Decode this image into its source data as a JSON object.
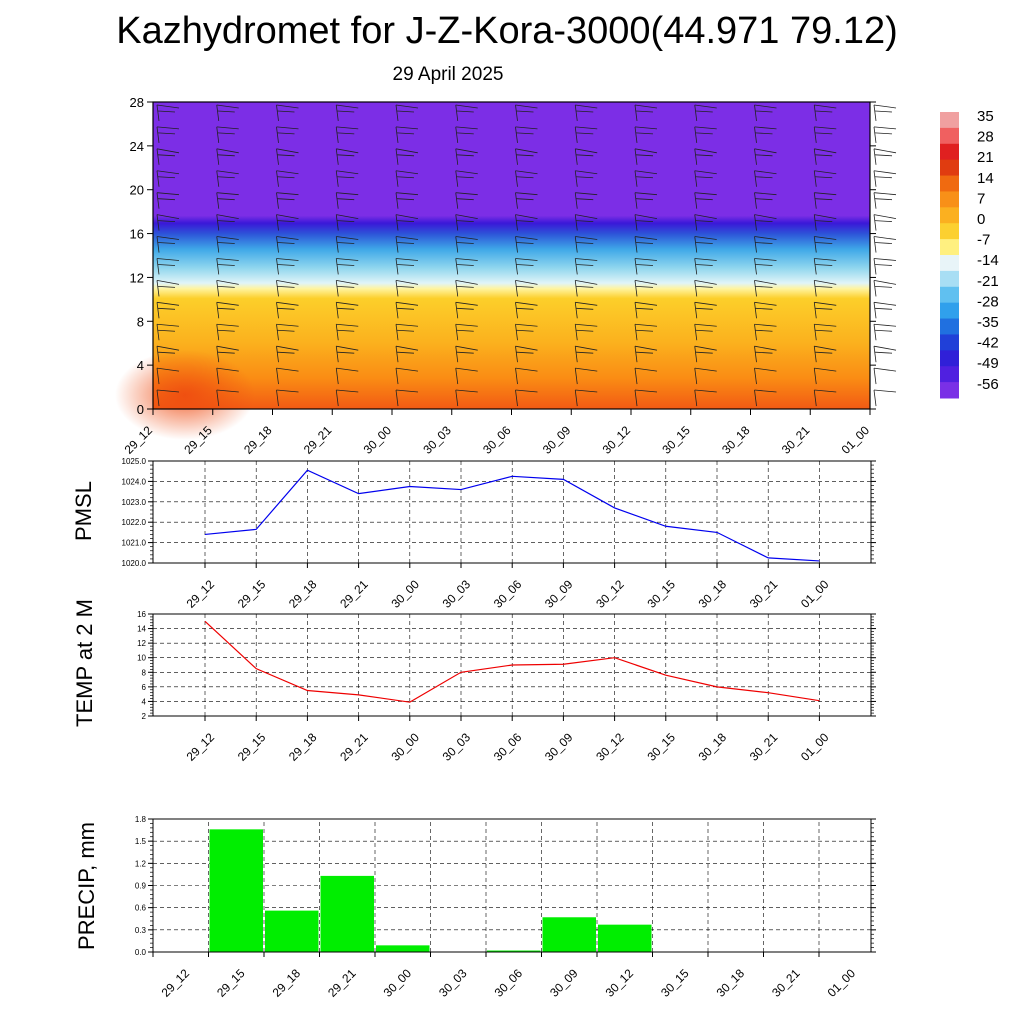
{
  "header": {
    "title": "Kazhydromet for J-Z-Kora-3000(44.971 79.12)",
    "date": "29 April 2025"
  },
  "colorbar": {
    "labels": [
      "35",
      "28",
      "21",
      "14",
      "7",
      "0",
      "-7",
      "-14",
      "-21",
      "-28",
      "-35",
      "-42",
      "-49",
      "-56"
    ]
  },
  "chart_data": [
    {
      "type": "heatmap",
      "title": "",
      "xlabel": "",
      "ylabel": "",
      "x": [
        "29_12",
        "29_15",
        "29_18",
        "29_21",
        "30_00",
        "30_03",
        "30_06",
        "30_09",
        "30_12",
        "30_15",
        "30_18",
        "30_21",
        "01_00"
      ],
      "yticks": [
        0,
        4,
        8,
        12,
        16,
        20,
        24,
        28
      ],
      "ylim": [
        0,
        28
      ],
      "colorbar_range": [
        -56,
        35
      ],
      "legend": "right",
      "note_overlay": "wind barbs"
    },
    {
      "type": "line",
      "ylabel": "PMSL",
      "x": [
        "29_12",
        "29_15",
        "29_18",
        "29_21",
        "30_00",
        "30_03",
        "30_06",
        "30_09",
        "30_12",
        "30_15",
        "30_18",
        "30_21",
        "01_00"
      ],
      "ylim": [
        1020.0,
        1025.0
      ],
      "yticks": [
        "1020.0",
        "1021.0",
        "1022.0",
        "1023.0",
        "1024.0",
        "1025.0"
      ],
      "grid": true,
      "color": "#0000ee",
      "series": [
        {
          "values": [
            1021.4,
            1021.65,
            1024.55,
            1023.4,
            1023.75,
            1023.6,
            1024.25,
            1024.1,
            1022.7,
            1021.8,
            1021.5,
            1020.25,
            1020.1
          ]
        }
      ]
    },
    {
      "type": "line",
      "ylabel": "TEMP at 2 M",
      "x": [
        "29_12",
        "29_15",
        "29_18",
        "29_21",
        "30_00",
        "30_03",
        "30_06",
        "30_09",
        "30_12",
        "30_15",
        "30_18",
        "30_21",
        "01_00"
      ],
      "ylim": [
        2,
        16
      ],
      "yticks": [
        "2",
        "4",
        "6",
        "8",
        "10",
        "12",
        "14",
        "16"
      ],
      "grid": true,
      "color": "#ee0000",
      "series": [
        {
          "values": [
            15.0,
            8.5,
            5.5,
            4.9,
            3.9,
            8.0,
            9.0,
            9.1,
            10.0,
            7.6,
            6.0,
            5.2,
            4.1
          ]
        }
      ]
    },
    {
      "type": "bar",
      "ylabel": "PRECIP, mm",
      "categories": [
        "29_12",
        "29_15",
        "29_18",
        "29_21",
        "30_00",
        "30_03",
        "30_06",
        "30_09",
        "30_12",
        "30_15",
        "30_18",
        "30_21",
        "01_00"
      ],
      "values": [
        0.0,
        1.66,
        0.56,
        1.03,
        0.09,
        0.0,
        0.02,
        0.47,
        0.37,
        0.0,
        0.0,
        0.0,
        0.0
      ],
      "ylim": [
        0,
        1.8
      ],
      "yticks": [
        "0.0",
        "0.3",
        "0.6",
        "0.9",
        "1.2",
        "1.5",
        "1.8"
      ],
      "grid": true,
      "color": "#00ee00"
    }
  ]
}
